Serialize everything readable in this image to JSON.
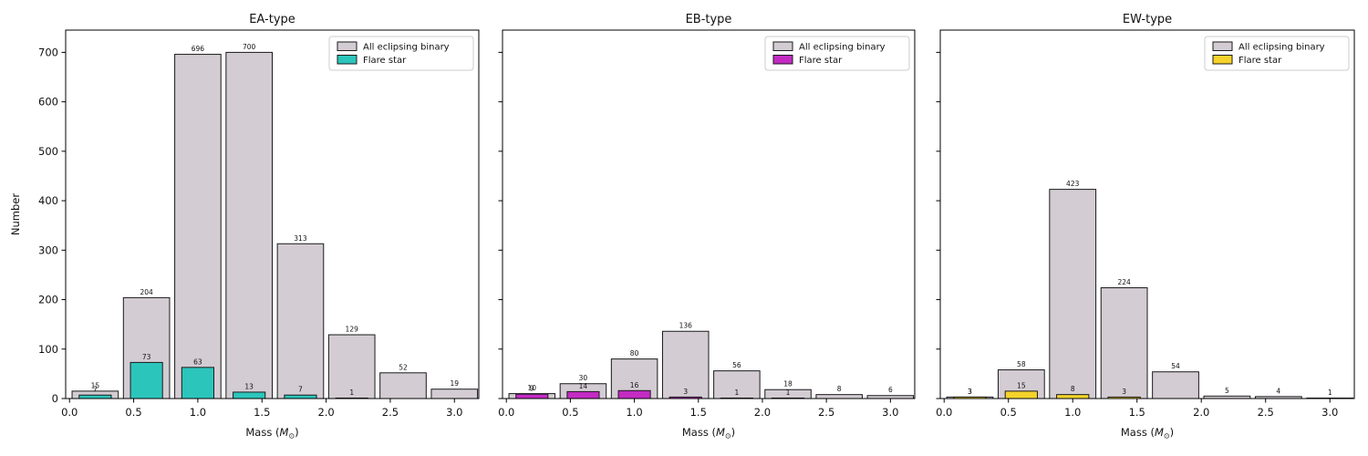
{
  "figure": {
    "background": "#ffffff",
    "ylabel": "Number",
    "xlabel": {
      "pre": "Mass (",
      "sym": "M",
      "sub": "⊙",
      "post": ")"
    },
    "legend": {
      "all_label": "All eclipsing binary",
      "flare_label": "Flare star",
      "border_color": "#cccccc",
      "position": "upper right"
    },
    "colors": {
      "all_binary_fill": "#d3ccd3",
      "bar_edge": "#1a1a1a",
      "spine": "#000000",
      "ea_flare_fill": "#2cc5bb",
      "eb_flare_fill": "#c32bc3",
      "ew_flare_fill": "#f5d32b"
    }
  },
  "chart_data": [
    {
      "type": "bar",
      "title": "EA-type",
      "xlabel": "Mass (M⊙)",
      "ylabel": "Number",
      "bin_centers": [
        0.2,
        0.6,
        1.0,
        1.4,
        1.8,
        2.2,
        2.6,
        3.0
      ],
      "bin_width": 0.4,
      "series": [
        {
          "name": "All eclipsing binary",
          "color": "#d3ccd3",
          "bar_width": 0.36,
          "values": [
            15,
            204,
            696,
            700,
            313,
            129,
            52,
            19
          ]
        },
        {
          "name": "Flare star",
          "color": "#2cc5bb",
          "bar_width": 0.25,
          "values": [
            7,
            73,
            63,
            13,
            7,
            1,
            null,
            null
          ]
        }
      ],
      "xticks": [
        "0.0",
        "0.5",
        "1.0",
        "1.5",
        "2.0",
        "2.5",
        "3.0"
      ],
      "yticks": [
        0,
        100,
        200,
        300,
        400,
        500,
        600,
        700
      ],
      "show_ytick_labels": true,
      "xlim": [
        -0.03,
        3.19
      ],
      "ylim": [
        0,
        745
      ],
      "grid": false,
      "legend_position": "upper right"
    },
    {
      "type": "bar",
      "title": "EB-type",
      "xlabel": "Mass (M⊙)",
      "ylabel": "",
      "bin_centers": [
        0.2,
        0.6,
        1.0,
        1.4,
        1.8,
        2.2,
        2.6,
        3.0
      ],
      "bin_width": 0.4,
      "series": [
        {
          "name": "All eclipsing binary",
          "color": "#d3ccd3",
          "bar_width": 0.36,
          "values": [
            10,
            30,
            80,
            136,
            56,
            18,
            8,
            6
          ]
        },
        {
          "name": "Flare star",
          "color": "#c32bc3",
          "bar_width": 0.25,
          "values": [
            9,
            14,
            16,
            3,
            1,
            1,
            null,
            null
          ]
        }
      ],
      "xticks": [
        "0.0",
        "0.5",
        "1.0",
        "1.5",
        "2.0",
        "2.5",
        "3.0"
      ],
      "yticks": [
        0,
        100,
        200,
        300,
        400,
        500,
        600,
        700
      ],
      "show_ytick_labels": false,
      "xlim": [
        -0.03,
        3.19
      ],
      "ylim": [
        0,
        745
      ],
      "grid": false,
      "legend_position": "upper right"
    },
    {
      "type": "bar",
      "title": "EW-type",
      "xlabel": "Mass (M⊙)",
      "ylabel": "",
      "bin_centers": [
        0.2,
        0.6,
        1.0,
        1.4,
        1.8,
        2.2,
        2.6,
        3.0
      ],
      "bin_width": 0.4,
      "series": [
        {
          "name": "All eclipsing binary",
          "color": "#d3ccd3",
          "bar_width": 0.36,
          "values": [
            3,
            58,
            423,
            224,
            54,
            5,
            4,
            1
          ]
        },
        {
          "name": "Flare star",
          "color": "#f5d32b",
          "bar_width": 0.25,
          "values": [
            3,
            15,
            8,
            3,
            null,
            null,
            null,
            null
          ]
        }
      ],
      "xticks": [
        "0.0",
        "0.5",
        "1.0",
        "1.5",
        "2.0",
        "2.5",
        "3.0"
      ],
      "yticks": [
        0,
        100,
        200,
        300,
        400,
        500,
        600,
        700
      ],
      "show_ytick_labels": false,
      "xlim": [
        -0.03,
        3.19
      ],
      "ylim": [
        0,
        745
      ],
      "grid": false,
      "legend_position": "upper right"
    }
  ]
}
